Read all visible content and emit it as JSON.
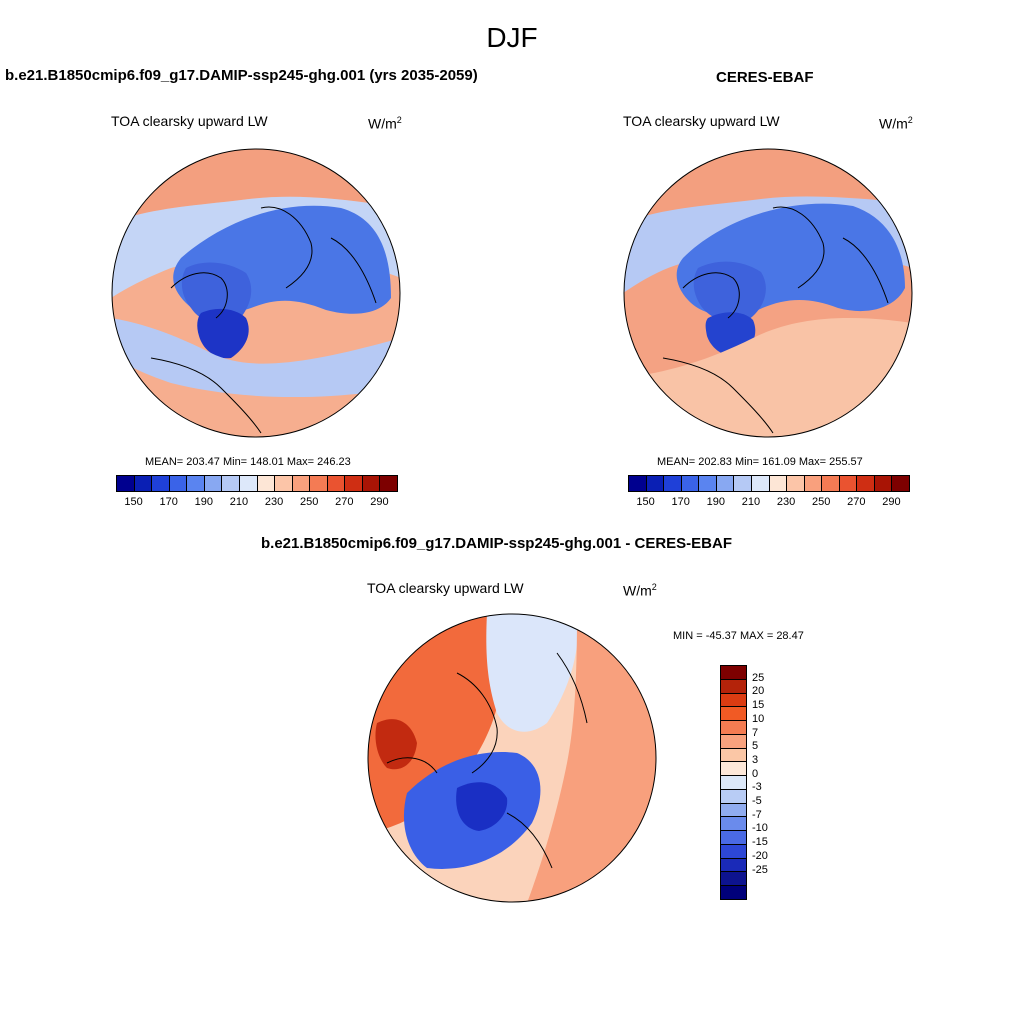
{
  "title": "DJF",
  "panel_model": {
    "header": "b.e21.B1850cmip6.f09_g17.DAMIP-ssp245-ghg.001 (yrs 2035-2059)",
    "variable": "TOA clearsky upward LW",
    "units": "W/m",
    "units_sup": "2",
    "stats": "MEAN= 203.47  Min= 148.01  Max= 246.23"
  },
  "panel_obs": {
    "header": "CERES-EBAF",
    "variable": "TOA clearsky upward LW",
    "units": "W/m",
    "units_sup": "2",
    "stats": "MEAN= 202.83  Min= 161.09  Max= 255.57"
  },
  "panel_diff": {
    "header": "b.e21.B1850cmip6.f09_g17.DAMIP-ssp245-ghg.001 - CERES-EBAF",
    "variable": "TOA clearsky upward LW",
    "units": "W/m",
    "units_sup": "2",
    "stats": "MIN = -45.37 MAX =  28.47"
  },
  "colorbar_abs": {
    "colors": [
      "#00008f",
      "#0a1fb4",
      "#1f40d8",
      "#3a63e8",
      "#5a84f0",
      "#88a8f2",
      "#b5c9f5",
      "#dde8fa",
      "#fde6d6",
      "#fcc5a8",
      "#f9a07d",
      "#f47b54",
      "#ea5330",
      "#cf2e13",
      "#a81405",
      "#7d0000"
    ],
    "labels": [
      "150",
      "170",
      "190",
      "210",
      "230",
      "250",
      "270",
      "290"
    ]
  },
  "colorbar_diff": {
    "colors": [
      "#7d0000",
      "#b4230a",
      "#dc3c12",
      "#f15a24",
      "#f47c52",
      "#f8a27e",
      "#fbc7a6",
      "#fde8d9",
      "#dce8f9",
      "#b8ccf5",
      "#90acf0",
      "#6a8bec",
      "#4a6ae4",
      "#2d47d6",
      "#1a2ab8",
      "#0d138f",
      "#00007a"
    ],
    "labels": [
      "25",
      "20",
      "15",
      "10",
      "7",
      "5",
      "3",
      "0",
      "-3",
      "-5",
      "-7",
      "-10",
      "-15",
      "-20",
      "-25"
    ]
  },
  "maps": {
    "model": {
      "ocean": "#f6ae8f",
      "regions": [
        {
          "name": "pacific-warm",
          "color": "#f39f7f"
        },
        {
          "name": "subarctic-light",
          "color": "#c4d5f6"
        },
        {
          "name": "eurasia-blue",
          "color": "#4a76e6"
        },
        {
          "name": "arctic-mid",
          "color": "#3e62dc"
        },
        {
          "name": "greenland-dark",
          "color": "#1d34c6"
        },
        {
          "name": "atlantic-light",
          "color": "#b6c9f4"
        }
      ]
    },
    "obs": {
      "ocean": "#f4a283",
      "regions": [
        {
          "name": "pacific-warm",
          "color": "#f39f7f"
        },
        {
          "name": "subarctic-light",
          "color": "#b6c9f4"
        },
        {
          "name": "eurasia-blue",
          "color": "#4a76e6"
        },
        {
          "name": "arctic-mid",
          "color": "#3e62dc"
        },
        {
          "name": "greenland-dark",
          "color": "#2443cf"
        },
        {
          "name": "atlantic-warm",
          "color": "#f9c3a6"
        }
      ]
    },
    "diff": {
      "ocean": "#fbd3bb",
      "regions": [
        {
          "name": "eurasia-warm",
          "color": "#f26a3c"
        },
        {
          "name": "siberia-strong",
          "color": "#c22a10"
        },
        {
          "name": "arctic-light",
          "color": "#dbe6fa"
        },
        {
          "name": "canada-cool",
          "color": "#3a5fe6"
        },
        {
          "name": "greenland-strong",
          "color": "#1a2fc4"
        },
        {
          "name": "atlantic-warm",
          "color": "#f8a07d"
        }
      ]
    }
  }
}
